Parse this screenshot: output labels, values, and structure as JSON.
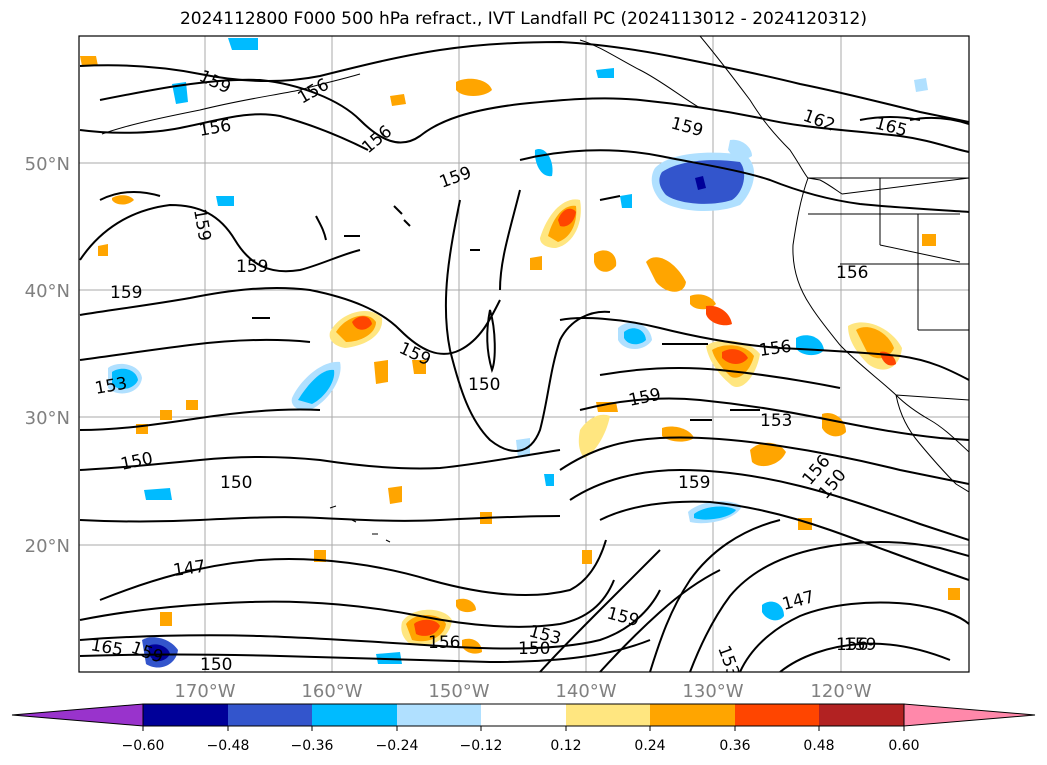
{
  "title": "2024112800 F000 500 hPa refract., IVT Landfall PC (2024113012 - 2024120312)",
  "lat_labels": [
    "50°N",
    "40°N",
    "30°N",
    "20°N"
  ],
  "lon_labels": [
    "170°W",
    "160°W",
    "150°W",
    "140°W",
    "130°W",
    "120°W"
  ],
  "colorbar": {
    "ticks": [
      "−0.60",
      "−0.48",
      "−0.36",
      "−0.24",
      "−0.12",
      "0.12",
      "0.24",
      "0.36",
      "0.48",
      "0.60"
    ],
    "colors": [
      "#9933cc",
      "#000099",
      "#3355cc",
      "#00bbff",
      "#b0e0ff",
      "#ffffff",
      "#ffe680",
      "#ffa500",
      "#ff4500",
      "#b22222",
      "#ff88aa"
    ]
  },
  "contour_labels": [
    {
      "text": "159"
    },
    {
      "text": "156"
    },
    {
      "text": "156"
    },
    {
      "text": "156"
    },
    {
      "text": "159"
    },
    {
      "text": "159"
    },
    {
      "text": "159"
    },
    {
      "text": "159"
    },
    {
      "text": "162"
    },
    {
      "text": "165"
    },
    {
      "text": "156"
    },
    {
      "text": "156"
    },
    {
      "text": "159"
    },
    {
      "text": "153"
    },
    {
      "text": "150"
    },
    {
      "text": "159"
    },
    {
      "text": "153"
    },
    {
      "text": "150"
    },
    {
      "text": "150"
    },
    {
      "text": "159"
    },
    {
      "text": "156"
    },
    {
      "text": "150"
    },
    {
      "text": "147"
    },
    {
      "text": "147"
    },
    {
      "text": "159"
    },
    {
      "text": "153"
    },
    {
      "text": "150"
    },
    {
      "text": "156"
    },
    {
      "text": "153"
    },
    {
      "text": "156"
    },
    {
      "text": "165"
    },
    {
      "text": "150"
    },
    {
      "text": "159"
    },
    {
      "text": "159"
    },
    {
      "text": "159"
    }
  ]
}
